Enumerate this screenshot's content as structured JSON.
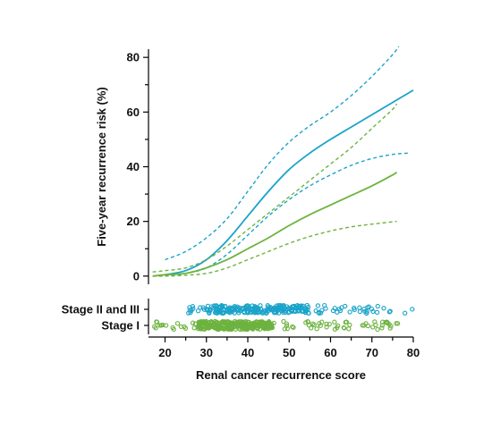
{
  "chart_data": {
    "type": "line",
    "xlabel": "Renal cancer recurrence score",
    "ylabel": "Five-year recurrence risk (%)",
    "xlim": [
      16,
      80
    ],
    "ylim": [
      -3,
      83
    ],
    "x_ticks": [
      20,
      30,
      40,
      50,
      60,
      70,
      80
    ],
    "y_ticks": [
      0,
      20,
      40,
      60,
      80
    ],
    "colors": {
      "stage_2_3": "#1aa3c9",
      "stage_1": "#6db33f"
    },
    "series": [
      {
        "key": "stage_2_3_estimate",
        "group": "stage_2_3",
        "style": "solid",
        "x": [
          20,
          25,
          30,
          35,
          40,
          45,
          50,
          55,
          60,
          65,
          70,
          75,
          80
        ],
        "values": [
          0.5,
          2,
          6,
          13,
          22,
          31,
          39,
          45,
          50,
          54.5,
          59,
          63.5,
          68
        ]
      },
      {
        "key": "stage_2_3_upper",
        "group": "stage_2_3",
        "style": "dashed",
        "x": [
          20,
          25,
          30,
          35,
          40,
          45,
          50,
          55,
          60,
          65,
          70,
          75,
          76.5
        ],
        "values": [
          6,
          9,
          14,
          21,
          31,
          41,
          49,
          55,
          60,
          66,
          73,
          81,
          84
        ]
      },
      {
        "key": "stage_2_3_lower",
        "group": "stage_2_3",
        "style": "dashed",
        "x": [
          20,
          25,
          30,
          35,
          40,
          45,
          50,
          55,
          60,
          65,
          70,
          75,
          79
        ],
        "values": [
          0,
          1,
          3,
          8,
          15,
          22,
          28,
          33,
          37,
          40.5,
          43,
          44.5,
          45
        ]
      },
      {
        "key": "stage_1_estimate",
        "group": "stage_1",
        "style": "solid",
        "x": [
          17,
          20,
          25,
          30,
          35,
          40,
          45,
          50,
          55,
          60,
          65,
          70,
          75,
          76
        ],
        "values": [
          0,
          0.5,
          1,
          3,
          6,
          10,
          14,
          18.5,
          22.5,
          26,
          29.5,
          33,
          37,
          38
        ]
      },
      {
        "key": "stage_1_upper",
        "group": "stage_1",
        "style": "dashed",
        "x": [
          17,
          20,
          25,
          30,
          35,
          40,
          45,
          50,
          55,
          60,
          65,
          70,
          75,
          76
        ],
        "values": [
          1.5,
          2,
          3,
          6,
          11,
          17,
          23,
          29,
          35,
          41,
          47,
          54,
          61,
          63
        ]
      },
      {
        "key": "stage_1_lower",
        "group": "stage_1",
        "style": "dashed",
        "x": [
          17,
          20,
          25,
          30,
          35,
          40,
          45,
          50,
          55,
          60,
          65,
          70,
          76
        ],
        "values": [
          0,
          0,
          0.3,
          1,
          3,
          6,
          9,
          12,
          14.5,
          16.5,
          18,
          19,
          20
        ]
      }
    ],
    "rug": [
      {
        "key": "stage_2_3",
        "label": "Stage II and III",
        "group": "stage_2_3",
        "x_range": [
          25,
          80
        ],
        "x_concentration": [
          30,
          55
        ],
        "count": 260
      },
      {
        "key": "stage_1",
        "label": "Stage I",
        "group": "stage_1",
        "x_range": [
          17,
          77
        ],
        "x_concentration": [
          28,
          46
        ],
        "count": 380
      }
    ]
  }
}
